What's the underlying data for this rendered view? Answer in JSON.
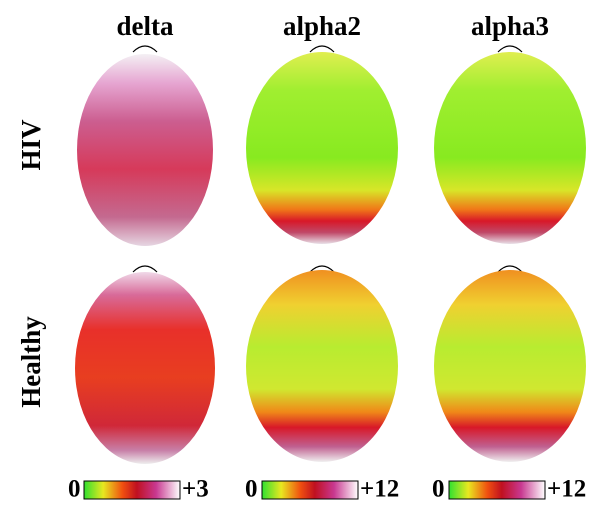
{
  "columns": [
    "delta",
    "alpha2",
    "alpha3"
  ],
  "rows": [
    "HIV",
    "Healthy"
  ],
  "colorbars": [
    {
      "min": "0",
      "max": "+3"
    },
    {
      "min": "0",
      "max": "+12"
    },
    {
      "min": "0",
      "max": "+12"
    }
  ]
}
